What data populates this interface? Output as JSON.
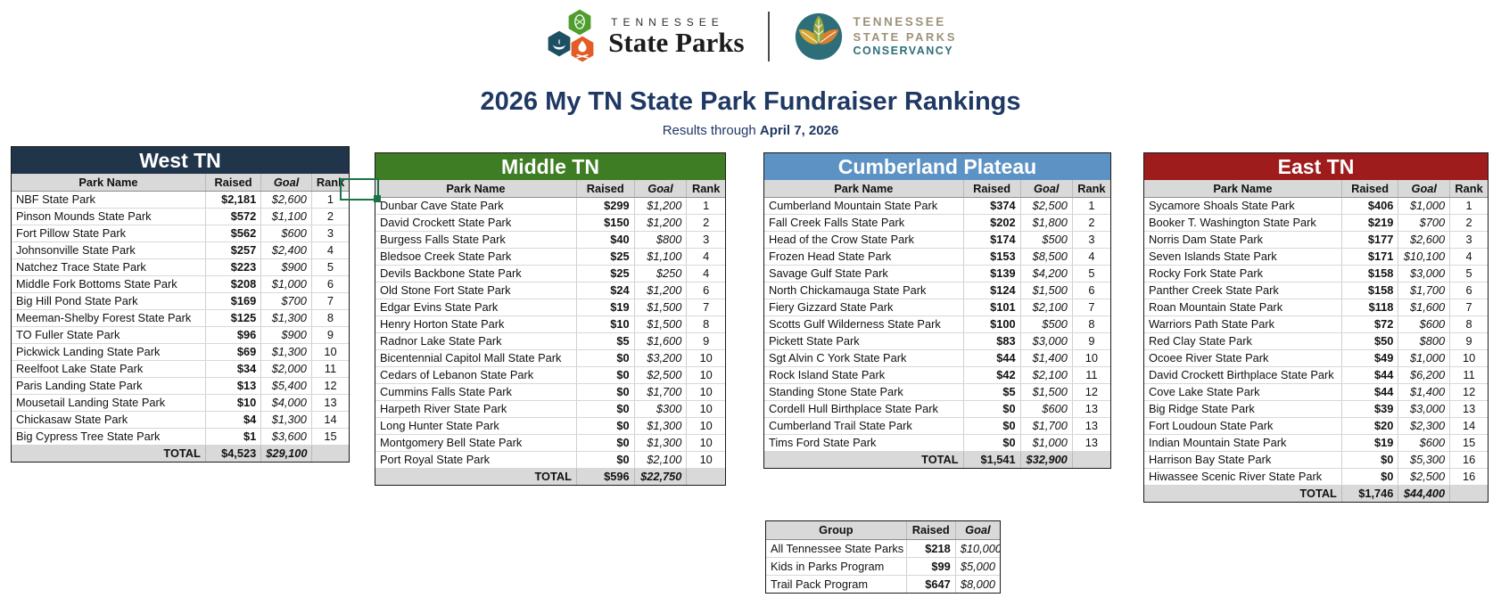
{
  "brand": {
    "parks_logo": {
      "top": "TENNESSEE",
      "bottom": "State Parks"
    },
    "conservancy_logo": {
      "line1": "TENNESSEE",
      "line2": "STATE PARKS",
      "line3": "CONSERVANCY"
    },
    "colors": {
      "hex_green": "#4E9D2D",
      "hex_blue": "#1D4F63",
      "hex_orange": "#E35B26",
      "circle_teal": "#2E6E79",
      "leaf_gold": "#D8A733",
      "leaf_olive": "#93A63B",
      "leaf_orange": "#D87E2E",
      "logo_text_taupe": "#9C9279"
    }
  },
  "title": "2026 My TN State Park Fundraiser Rankings",
  "title_color": "#1F3864",
  "subtitle": {
    "prefix": "Results through ",
    "date": "April 7, 2026"
  },
  "columns": {
    "park": "Park Name",
    "raised": "Raised",
    "goal": "Goal",
    "rank": "Rank"
  },
  "total_label": "TOTAL",
  "selection_color": "#1A7343",
  "regions": [
    {
      "name": "West TN",
      "color": "#20354A",
      "rows": [
        [
          "NBF State Park",
          "$2,181",
          "$2,600",
          "1"
        ],
        [
          "Pinson Mounds State Park",
          "$572",
          "$1,100",
          "2"
        ],
        [
          "Fort Pillow State Park",
          "$562",
          "$600",
          "3"
        ],
        [
          "Johnsonville State Park",
          "$257",
          "$2,400",
          "4"
        ],
        [
          "Natchez Trace State Park",
          "$223",
          "$900",
          "5"
        ],
        [
          "Middle Fork Bottoms State Park",
          "$208",
          "$1,000",
          "6"
        ],
        [
          "Big Hill Pond State Park",
          "$169",
          "$700",
          "7"
        ],
        [
          "Meeman-Shelby Forest State Park",
          "$125",
          "$1,300",
          "8"
        ],
        [
          "TO Fuller State Park",
          "$96",
          "$900",
          "9"
        ],
        [
          "Pickwick Landing State Park",
          "$69",
          "$1,300",
          "10"
        ],
        [
          "Reelfoot Lake State Park",
          "$34",
          "$2,000",
          "11"
        ],
        [
          "Paris Landing State Park",
          "$13",
          "$5,400",
          "12"
        ],
        [
          "Mousetail Landing State Park",
          "$10",
          "$4,000",
          "13"
        ],
        [
          "Chickasaw State Park",
          "$4",
          "$1,300",
          "14"
        ],
        [
          "Big Cypress Tree State Park",
          "$1",
          "$3,600",
          "15"
        ]
      ],
      "total": {
        "raised": "$4,523",
        "goal": "$29,100"
      }
    },
    {
      "name": "Middle TN",
      "color": "#3F7D24",
      "rows": [
        [
          "Dunbar Cave State Park",
          "$299",
          "$1,200",
          "1"
        ],
        [
          "David Crockett State Park",
          "$150",
          "$1,200",
          "2"
        ],
        [
          "Burgess Falls State Park",
          "$40",
          "$800",
          "3"
        ],
        [
          "Bledsoe Creek State Park",
          "$25",
          "$1,100",
          "4"
        ],
        [
          "Devils Backbone State Park",
          "$25",
          "$250",
          "4"
        ],
        [
          "Old Stone Fort State Park",
          "$24",
          "$1,200",
          "6"
        ],
        [
          "Edgar Evins State Park",
          "$19",
          "$1,500",
          "7"
        ],
        [
          "Henry Horton State Park",
          "$10",
          "$1,500",
          "8"
        ],
        [
          "Radnor Lake State Park",
          "$5",
          "$1,600",
          "9"
        ],
        [
          "Bicentennial Capitol Mall State Park",
          "$0",
          "$3,200",
          "10"
        ],
        [
          "Cedars of Lebanon State Park",
          "$0",
          "$2,500",
          "10"
        ],
        [
          "Cummins Falls State Park",
          "$0",
          "$1,700",
          "10"
        ],
        [
          "Harpeth River State Park",
          "$0",
          "$300",
          "10"
        ],
        [
          "Long Hunter State Park",
          "$0",
          "$1,300",
          "10"
        ],
        [
          "Montgomery Bell State Park",
          "$0",
          "$1,300",
          "10"
        ],
        [
          "Port Royal State Park",
          "$0",
          "$2,100",
          "10"
        ]
      ],
      "total": {
        "raised": "$596",
        "goal": "$22,750"
      }
    },
    {
      "name": "Cumberland Plateau",
      "color": "#5D93C4",
      "rows": [
        [
          "Cumberland Mountain State Park",
          "$374",
          "$2,500",
          "1"
        ],
        [
          "Fall Creek Falls State Park",
          "$202",
          "$1,800",
          "2"
        ],
        [
          "Head of the Crow State Park",
          "$174",
          "$500",
          "3"
        ],
        [
          "Frozen Head State Park",
          "$153",
          "$8,500",
          "4"
        ],
        [
          "Savage Gulf State Park",
          "$139",
          "$4,200",
          "5"
        ],
        [
          "North Chickamauga State Park",
          "$124",
          "$1,500",
          "6"
        ],
        [
          "Fiery Gizzard State Park",
          "$101",
          "$2,100",
          "7"
        ],
        [
          "Scotts Gulf Wilderness State Park",
          "$100",
          "$500",
          "8"
        ],
        [
          "Pickett State Park",
          "$83",
          "$3,000",
          "9"
        ],
        [
          "Sgt Alvin C York State Park",
          "$44",
          "$1,400",
          "10"
        ],
        [
          "Rock Island State Park",
          "$42",
          "$2,100",
          "11"
        ],
        [
          "Standing Stone State Park",
          "$5",
          "$1,500",
          "12"
        ],
        [
          "Cordell Hull Birthplace State Park",
          "$0",
          "$600",
          "13"
        ],
        [
          "Cumberland Trail State Park",
          "$0",
          "$1,700",
          "13"
        ],
        [
          "Tims Ford State Park",
          "$0",
          "$1,000",
          "13"
        ]
      ],
      "total": {
        "raised": "$1,541",
        "goal": "$32,900"
      }
    },
    {
      "name": "East TN",
      "color": "#9E1C1C",
      "rows": [
        [
          "Sycamore Shoals State Park",
          "$406",
          "$1,000",
          "1"
        ],
        [
          "Booker T. Washington State Park",
          "$219",
          "$700",
          "2"
        ],
        [
          "Norris Dam State Park",
          "$177",
          "$2,600",
          "3"
        ],
        [
          "Seven Islands State Park",
          "$171",
          "$10,100",
          "4"
        ],
        [
          "Rocky Fork State Park",
          "$158",
          "$3,000",
          "5"
        ],
        [
          "Panther Creek State Park",
          "$158",
          "$1,700",
          "6"
        ],
        [
          "Roan Mountain State Park",
          "$118",
          "$1,600",
          "7"
        ],
        [
          "Warriors Path State Park",
          "$72",
          "$600",
          "8"
        ],
        [
          "Red Clay State Park",
          "$50",
          "$800",
          "9"
        ],
        [
          "Ocoee River State Park",
          "$49",
          "$1,000",
          "10"
        ],
        [
          "David Crockett Birthplace State Park",
          "$44",
          "$6,200",
          "11"
        ],
        [
          "Cove Lake State Park",
          "$44",
          "$1,400",
          "12"
        ],
        [
          "Big Ridge State Park",
          "$39",
          "$3,000",
          "13"
        ],
        [
          "Fort Loudoun State Park",
          "$20",
          "$2,300",
          "14"
        ],
        [
          "Indian Mountain State Park",
          "$19",
          "$600",
          "15"
        ],
        [
          "Harrison Bay State Park",
          "$0",
          "$5,300",
          "16"
        ],
        [
          "Hiwassee Scenic River State Park",
          "$0",
          "$2,500",
          "16"
        ]
      ],
      "total": {
        "raised": "$1,746",
        "goal": "$44,400"
      }
    }
  ],
  "group_table": {
    "columns": {
      "group": "Group",
      "raised": "Raised",
      "goal": "Goal"
    },
    "rows": [
      [
        "All Tennessee State Parks",
        "$218",
        "$10,000"
      ],
      [
        "Kids in Parks Program",
        "$99",
        "$5,000"
      ],
      [
        "Trail Pack Program",
        "$647",
        "$8,000"
      ]
    ]
  }
}
